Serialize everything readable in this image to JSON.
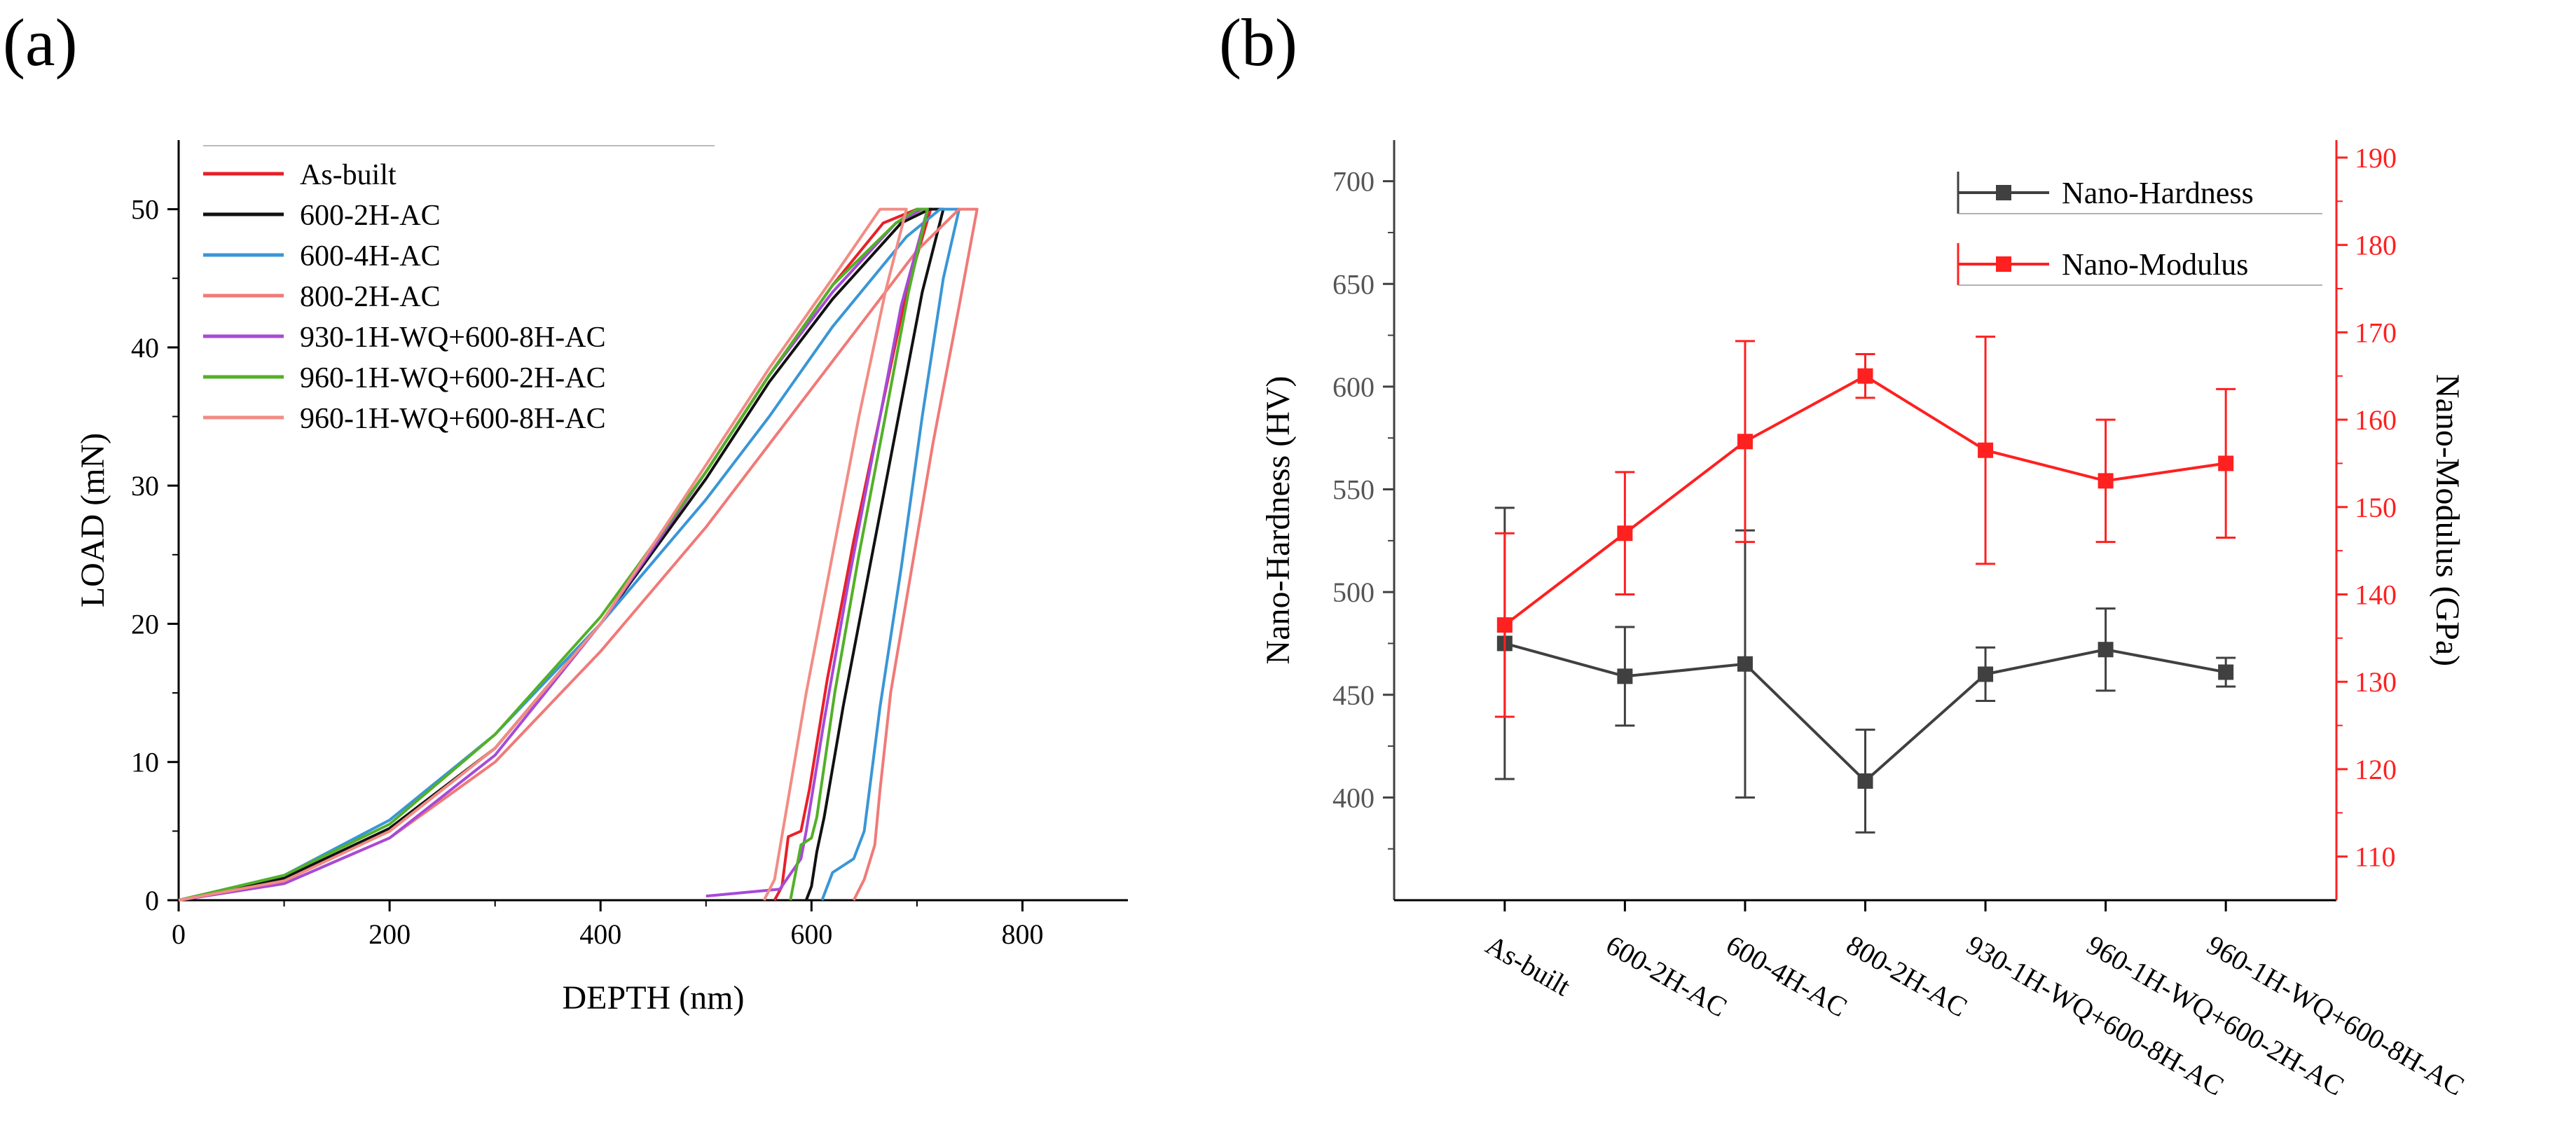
{
  "panels": {
    "a_label": "(a)",
    "b_label": "(b)"
  },
  "chart_data": [
    {
      "type": "line",
      "panel": "a",
      "title": "",
      "xlabel": "DEPTH (nm)",
      "ylabel": "LOAD (mN)",
      "xlim": [
        0,
        900
      ],
      "ylim": [
        0,
        55
      ],
      "xticks": [
        0,
        200,
        400,
        600,
        800
      ],
      "yticks": [
        0,
        10,
        20,
        30,
        40,
        50
      ],
      "legend_position": "top-left",
      "series": [
        {
          "name": "As-built",
          "color": "#e8202a",
          "loading": [
            [
              0,
              0
            ],
            [
              100,
              1.6
            ],
            [
              200,
              5
            ],
            [
              300,
              11
            ],
            [
              400,
              20
            ],
            [
              500,
              31
            ],
            [
              560,
              38
            ],
            [
              620,
              44.5
            ],
            [
              668,
              49
            ],
            [
              700,
              50
            ]
          ],
          "unloading": [
            [
              713,
              50
            ],
            [
              690,
              44
            ],
            [
              665,
              35
            ],
            [
              640,
              26
            ],
            [
              615,
              16
            ],
            [
              598,
              8
            ],
            [
              590,
              5
            ],
            [
              578,
              4.6
            ],
            [
              572,
              1
            ],
            [
              565,
              0
            ]
          ]
        },
        {
          "name": "600-2H-AC",
          "color": "#111111",
          "loading": [
            [
              0,
              0
            ],
            [
              100,
              1.6
            ],
            [
              200,
              5.2
            ],
            [
              300,
              11
            ],
            [
              400,
              20
            ],
            [
              500,
              30.5
            ],
            [
              560,
              37.5
            ],
            [
              620,
              43.5
            ],
            [
              685,
              49
            ],
            [
              712,
              50
            ]
          ],
          "unloading": [
            [
              725,
              50
            ],
            [
              705,
              44
            ],
            [
              680,
              34
            ],
            [
              655,
              24
            ],
            [
              630,
              14
            ],
            [
              612,
              6
            ],
            [
              605,
              3.5
            ],
            [
              600,
              1
            ],
            [
              595,
              0
            ]
          ]
        },
        {
          "name": "600-4H-AC",
          "color": "#3a96d6",
          "loading": [
            [
              0,
              0
            ],
            [
              100,
              1.8
            ],
            [
              200,
              5.8
            ],
            [
              300,
              12
            ],
            [
              400,
              20
            ],
            [
              500,
              29
            ],
            [
              560,
              35
            ],
            [
              620,
              41.5
            ],
            [
              690,
              48
            ],
            [
              722,
              50
            ]
          ],
          "unloading": [
            [
              740,
              50
            ],
            [
              725,
              45
            ],
            [
              705,
              35
            ],
            [
              685,
              24
            ],
            [
              665,
              14
            ],
            [
              650,
              5
            ],
            [
              640,
              3
            ],
            [
              620,
              2
            ],
            [
              610,
              0
            ]
          ]
        },
        {
          "name": "800-2H-AC",
          "color": "#f07a78",
          "loading": [
            [
              0,
              0
            ],
            [
              100,
              1.2
            ],
            [
              200,
              4.5
            ],
            [
              300,
              10
            ],
            [
              400,
              18
            ],
            [
              500,
              27
            ],
            [
              560,
              33
            ],
            [
              620,
              39
            ],
            [
              700,
              47
            ],
            [
              740,
              50
            ]
          ],
          "unloading": [
            [
              757,
              50
            ],
            [
              740,
              43
            ],
            [
              715,
              33
            ],
            [
              695,
              24
            ],
            [
              675,
              15
            ],
            [
              665,
              8
            ],
            [
              660,
              4
            ],
            [
              650,
              1.5
            ],
            [
              640,
              0
            ]
          ]
        },
        {
          "name": "930-1H-WQ+600-8H-AC",
          "color": "#a64ad8",
          "loading": [
            [
              0,
              0
            ],
            [
              100,
              1.2
            ],
            [
              200,
              4.5
            ],
            [
              300,
              10.5
            ],
            [
              400,
              20
            ],
            [
              500,
              31
            ],
            [
              560,
              38
            ],
            [
              620,
              44
            ],
            [
              680,
              49
            ],
            [
              705,
              50
            ]
          ],
          "unloading": [
            [
              710,
              50
            ],
            [
              685,
              43
            ],
            [
              660,
              33
            ],
            [
              635,
              23
            ],
            [
              612,
              13
            ],
            [
              595,
              5
            ],
            [
              590,
              3
            ],
            [
              570,
              0.8
            ],
            [
              500,
              0.3
            ]
          ]
        },
        {
          "name": "960-1H-WQ+600-2H-AC",
          "color": "#53b027",
          "loading": [
            [
              0,
              0
            ],
            [
              100,
              1.8
            ],
            [
              200,
              5.5
            ],
            [
              300,
              12
            ],
            [
              400,
              20.5
            ],
            [
              500,
              31
            ],
            [
              560,
              38
            ],
            [
              620,
              44.5
            ],
            [
              680,
              49
            ],
            [
              700,
              50
            ]
          ],
          "unloading": [
            [
              710,
              50
            ],
            [
              692,
              44
            ],
            [
              670,
              35
            ],
            [
              645,
              25
            ],
            [
              622,
              15
            ],
            [
              605,
              6
            ],
            [
              600,
              4.5
            ],
            [
              590,
              4
            ],
            [
              580,
              0
            ]
          ]
        },
        {
          "name": "960-1H-WQ+600-8H-AC",
          "color": "#f28c84",
          "loading": [
            [
              0,
              0
            ],
            [
              100,
              1.4
            ],
            [
              200,
              5
            ],
            [
              300,
              11
            ],
            [
              400,
              20
            ],
            [
              500,
              31.5
            ],
            [
              560,
              38.5
            ],
            [
              620,
              45
            ],
            [
              665,
              50
            ],
            [
              675,
              50
            ]
          ],
          "unloading": [
            [
              690,
              50
            ],
            [
              670,
              44
            ],
            [
              645,
              35
            ],
            [
              620,
              25
            ],
            [
              595,
              15
            ],
            [
              575,
              6
            ],
            [
              565,
              1.5
            ],
            [
              555,
              0
            ]
          ]
        }
      ]
    },
    {
      "type": "line",
      "panel": "b",
      "title": "",
      "xlabel": "",
      "ylabel": "Nano-Hardness (HV)",
      "y2label": "Nano-Modulus (GPa)",
      "ylim": [
        350,
        720
      ],
      "y2lim": [
        105,
        192
      ],
      "yticks": [
        400,
        450,
        500,
        550,
        600,
        650,
        700
      ],
      "y2ticks": [
        110,
        120,
        130,
        140,
        150,
        160,
        170,
        180,
        190
      ],
      "categories": [
        "As-built",
        "600-2H-AC",
        "600-4H-AC",
        "800-2H-AC",
        "930-1H-WQ+600-8H-AC",
        "960-1H-WQ+600-2H-AC",
        "960-1H-WQ+600-8H-AC"
      ],
      "legend_position": "top-right",
      "series": [
        {
          "name": "Nano-Hardness",
          "axis": "left",
          "color": "#404040",
          "values": [
            475,
            459,
            465,
            408,
            460,
            472,
            461
          ],
          "errors": [
            66,
            24,
            65,
            25,
            13,
            20,
            7
          ]
        },
        {
          "name": "Nano-Modulus",
          "axis": "right",
          "color": "#ff2020",
          "values": [
            136.5,
            147,
            157.5,
            165,
            156.5,
            153,
            155
          ],
          "errors": [
            10.5,
            7,
            11.5,
            2.5,
            13,
            7,
            8.5
          ]
        }
      ]
    }
  ]
}
